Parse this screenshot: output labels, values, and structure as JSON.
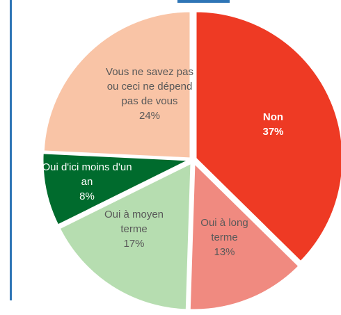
{
  "chart_data": {
    "type": "pie",
    "categories": [
      "Non",
      "Oui à long terme",
      "Oui à moyen terme",
      "Oui d'ici moins d'un an",
      "Vous ne savez pas ou ceci ne dépend pas de vous"
    ],
    "values": [
      37,
      13,
      17,
      8,
      24
    ],
    "value_labels": [
      "37%",
      "13%",
      "17%",
      "8%",
      "24%"
    ],
    "colors": [
      "#ee3a24",
      "#f08a80",
      "#b6ddb0",
      "#006b2d",
      "#f9c4a6"
    ]
  }
}
